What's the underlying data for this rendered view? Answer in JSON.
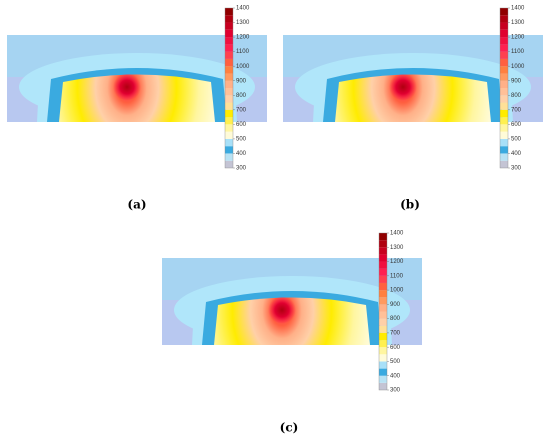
{
  "figure": {
    "colorbar": {
      "lim": [
        300,
        1400
      ],
      "ticks": [
        300,
        400,
        500,
        600,
        700,
        800,
        900,
        1000,
        1100,
        1200,
        1300,
        1400
      ],
      "levels": [
        300,
        350,
        400,
        450,
        500,
        550,
        600,
        650,
        700,
        750,
        800,
        850,
        900,
        950,
        1000,
        1050,
        1100,
        1150,
        1200,
        1250,
        1300,
        1350,
        1400
      ],
      "colors": [
        "#c4c4d4",
        "#b8e2f4",
        "#3aaae0",
        "#a8e0f8",
        "#fffbd8",
        "#fff6a0",
        "#fff050",
        "#ffec00",
        "#ffe098",
        "#ffd0a8",
        "#ffc098",
        "#ffb088",
        "#ff9a60",
        "#ff8040",
        "#ff6040",
        "#ff4050",
        "#ff2050",
        "#f01040",
        "#e00030",
        "#c80020",
        "#b00010",
        "#900000"
      ]
    },
    "panels": [
      {
        "label": "(a)"
      },
      {
        "label": "(b)"
      },
      {
        "label": "(c)"
      }
    ]
  }
}
